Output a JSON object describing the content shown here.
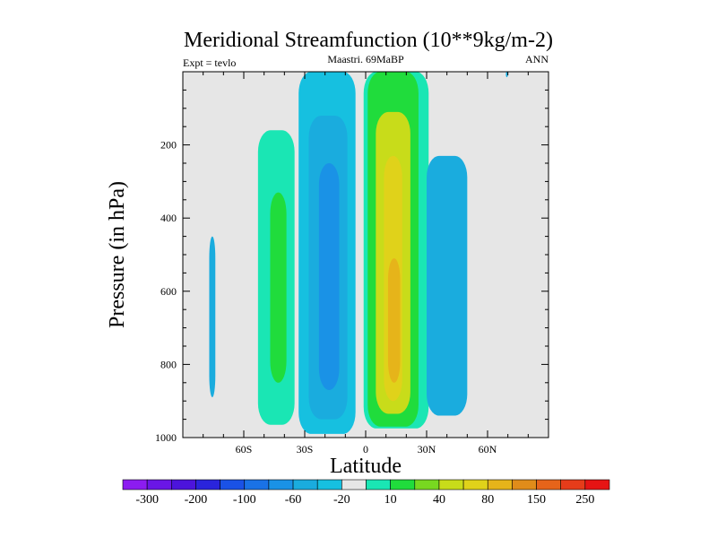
{
  "chart_data": {
    "type": "contour",
    "title": "Meridional Streamfunction (10**9kg/m-2)",
    "left_label": "Expt = tevlo",
    "center_label": "Maastri.  69MaBP",
    "right_label": "ANN",
    "xlabel": "Latitude",
    "ylabel": "Pressure (in hPa)",
    "xlim": [
      -90,
      90
    ],
    "ylim": [
      1000,
      0
    ],
    "x_ticks": [
      -60,
      -30,
      0,
      30,
      60
    ],
    "x_tick_labels": [
      "60S",
      "30S",
      "0",
      "30N",
      "60N"
    ],
    "y_ticks": [
      200,
      400,
      600,
      800,
      1000
    ],
    "y_tick_labels": [
      "200",
      "400",
      "600",
      "800",
      "1000"
    ],
    "colorbar": {
      "colors": [
        "#8c1cf0",
        "#6a16e6",
        "#4c14dc",
        "#2a24dc",
        "#1a52e6",
        "#1a72e6",
        "#1a92e6",
        "#1aacde",
        "#16c0e0",
        "#e6e6e6",
        "#1ae6b4",
        "#20dc3c",
        "#78d820",
        "#c8dc1a",
        "#e0d21a",
        "#e6b41a",
        "#e08c1a",
        "#e6641a",
        "#e63c1a",
        "#e61414"
      ],
      "labels": [
        "-300",
        "-200",
        "-100",
        "-60",
        "-20",
        "10",
        "40",
        "80",
        "150",
        "250"
      ]
    },
    "contour_regions": [
      {
        "level": "-20",
        "color": "#1aacde",
        "lat_range": [
          -77,
          -74
        ],
        "pressure_range": [
          450,
          890
        ]
      },
      {
        "level": "10",
        "color": "#1ae6b4",
        "lat_range": [
          -53,
          -35
        ],
        "pressure_range": [
          160,
          965
        ]
      },
      {
        "level": "40",
        "color": "#20dc3c",
        "lat_range": [
          -47,
          -39
        ],
        "pressure_range": [
          330,
          850
        ]
      },
      {
        "level": "-20",
        "color": "#16c0e0",
        "lat_range": [
          -33,
          -5
        ],
        "pressure_range": [
          0,
          990
        ]
      },
      {
        "level": "-40",
        "color": "#1aacde",
        "lat_range": [
          -28,
          -9
        ],
        "pressure_range": [
          120,
          950
        ]
      },
      {
        "level": "-60",
        "color": "#1a92e6",
        "lat_range": [
          -23,
          -13
        ],
        "pressure_range": [
          250,
          870
        ]
      },
      {
        "level": "10",
        "color": "#1ae6b4",
        "lat_range": [
          -1,
          31
        ],
        "pressure_range": [
          0,
          975
        ]
      },
      {
        "level": "40",
        "color": "#20dc3c",
        "lat_range": [
          1,
          26
        ],
        "pressure_range": [
          0,
          970
        ]
      },
      {
        "level": "80",
        "color": "#c8dc1a",
        "lat_range": [
          5,
          22
        ],
        "pressure_range": [
          110,
          935
        ]
      },
      {
        "level": "150",
        "color": "#e0d21a",
        "lat_range": [
          9,
          18
        ],
        "pressure_range": [
          230,
          900
        ]
      },
      {
        "level": "200",
        "color": "#e6b41a",
        "lat_range": [
          11,
          17
        ],
        "pressure_range": [
          510,
          850
        ]
      },
      {
        "level": "-20",
        "color": "#1aacde",
        "lat_range": [
          30,
          50
        ],
        "pressure_range": [
          230,
          940
        ]
      },
      {
        "level": "-20",
        "color": "#1aacde",
        "lat_range": [
          69,
          70
        ],
        "pressure_range": [
          0,
          15
        ]
      }
    ]
  }
}
